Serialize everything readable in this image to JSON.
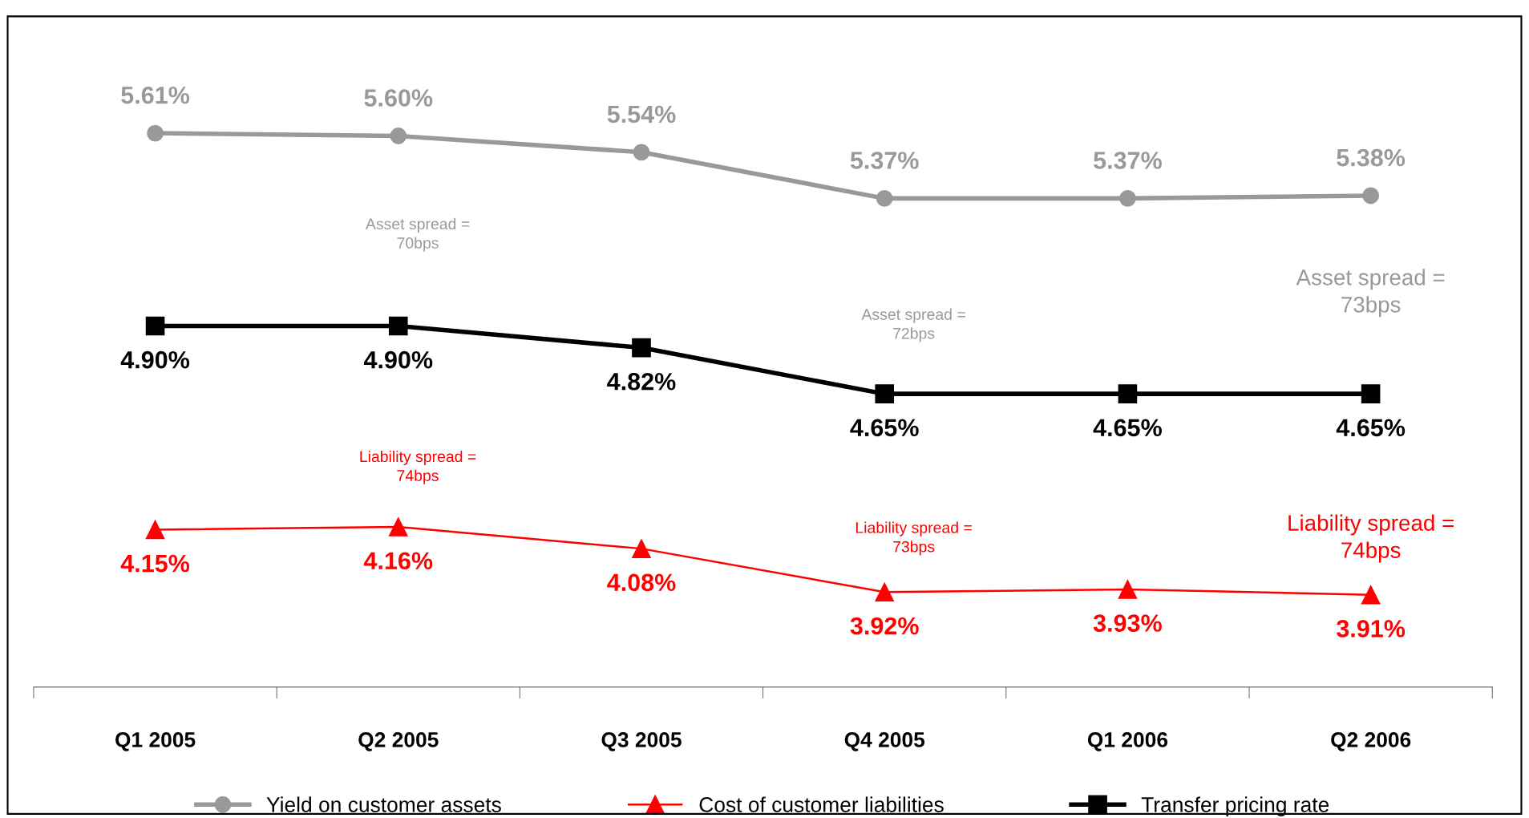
{
  "chart_data": {
    "type": "line",
    "categories": [
      "Q1 2005",
      "Q2 2005",
      "Q3 2005",
      "Q4 2005",
      "Q1 2006",
      "Q2 2006"
    ],
    "series": [
      {
        "name": "Yield on customer assets",
        "color": "#999999",
        "marker": "circle",
        "values": [
          5.61,
          5.6,
          5.54,
          5.37,
          5.37,
          5.38
        ],
        "value_labels": [
          "5.61%",
          "5.60%",
          "5.54%",
          "5.37%",
          "5.37%",
          "5.38%"
        ]
      },
      {
        "name": "Cost of customer liabilities",
        "color": "#ff0000",
        "marker": "triangle",
        "values": [
          4.15,
          4.16,
          4.08,
          3.92,
          3.93,
          3.91
        ],
        "value_labels": [
          "4.15%",
          "4.16%",
          "4.08%",
          "3.92%",
          "3.93%",
          "3.91%"
        ]
      },
      {
        "name": "Transfer pricing rate",
        "color": "#000000",
        "marker": "square",
        "values": [
          4.9,
          4.9,
          4.82,
          4.65,
          4.65,
          4.65
        ],
        "value_labels": [
          "4.90%",
          "4.90%",
          "4.82%",
          "4.65%",
          "4.65%",
          "4.65%"
        ]
      }
    ],
    "legend": "bottom",
    "annotations": [
      "Asset spread =\n70bps",
      "Asset spread =\n72bps",
      "Asset spread =\n73bps",
      "Liability spread =\n74bps",
      "Liability spread =\n73bps",
      "Liability spread =\n74bps"
    ]
  }
}
